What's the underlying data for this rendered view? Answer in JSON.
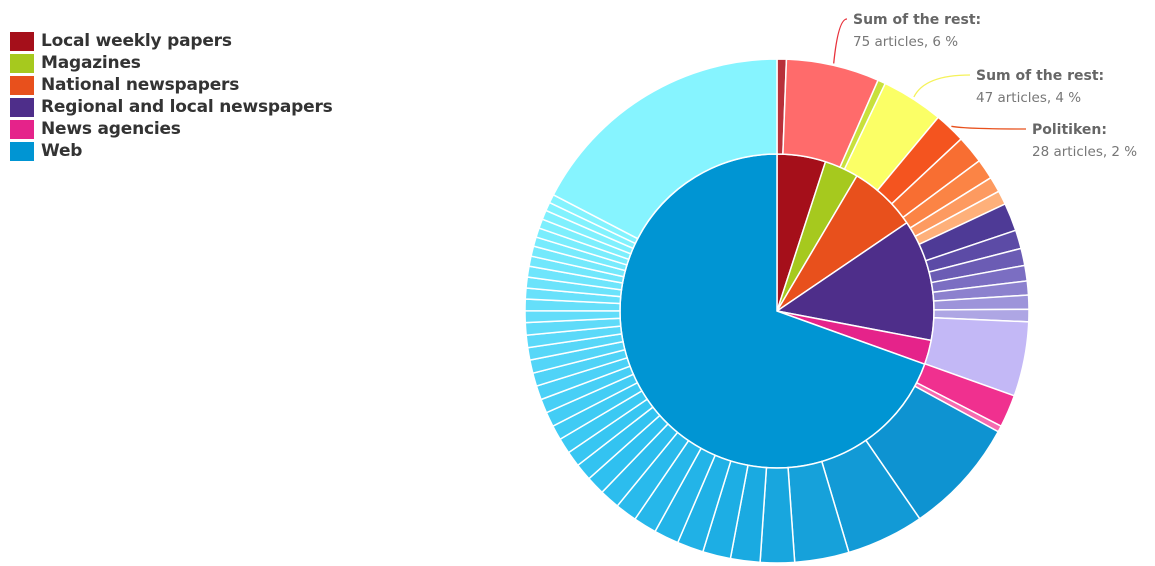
{
  "chart_data": {
    "type": "pie",
    "subtype": "sunburst",
    "legend": {
      "placement": "top-left"
    },
    "inner": [
      {
        "name": "Local weekly papers",
        "value": 5,
        "color": "#A50F1A"
      },
      {
        "name": "Magazines",
        "value": 3.5,
        "color": "#A6C91E"
      },
      {
        "name": "National newspapers",
        "value": 7,
        "color": "#E8501C"
      },
      {
        "name": "Regional and local newspapers",
        "value": 12.5,
        "color": "#4E2E8A"
      },
      {
        "name": "News agencies",
        "value": 2.5,
        "color": "#E5238A"
      },
      {
        "name": "Web",
        "value": 69.5,
        "color": "#0095D3"
      }
    ],
    "outer": [
      {
        "parent": "Local weekly papers",
        "value": 0.6,
        "color": "#B8303A"
      },
      {
        "parent": "Local weekly papers",
        "value": 6,
        "color": "#FF6B6B",
        "label": "Sum of the rest:",
        "detail": "75 articles, 6 %"
      },
      {
        "parent": "Magazines",
        "value": 0.5,
        "color": "#C8E03C"
      },
      {
        "parent": "Magazines",
        "value": 4,
        "color": "#FBFF66",
        "label": "Sum of the rest:",
        "detail": "47 articles, 4 %"
      },
      {
        "parent": "National newspapers",
        "value": 2,
        "color": "#F4541F",
        "label": "Politiken:",
        "detail": "28 articles, 2 %"
      },
      {
        "parent": "National newspapers",
        "value": 1.8,
        "color": "#F86E32"
      },
      {
        "parent": "National newspapers",
        "value": 1.3,
        "color": "#FB8445"
      },
      {
        "parent": "National newspapers",
        "value": 1.0,
        "color": "#FD9A60"
      },
      {
        "parent": "National newspapers",
        "value": 0.9,
        "color": "#FEB07A"
      },
      {
        "parent": "Regional and local newspapers",
        "value": 1.8,
        "color": "#4E3A96"
      },
      {
        "parent": "Regional and local newspapers",
        "value": 1.2,
        "color": "#5C4BA6"
      },
      {
        "parent": "Regional and local newspapers",
        "value": 1.1,
        "color": "#6B5CB4"
      },
      {
        "parent": "Regional and local newspapers",
        "value": 1.0,
        "color": "#7B6EC2"
      },
      {
        "parent": "Regional and local newspapers",
        "value": 0.9,
        "color": "#8C81CE"
      },
      {
        "parent": "Regional and local newspapers",
        "value": 0.9,
        "color": "#9D94DA"
      },
      {
        "parent": "Regional and local newspapers",
        "value": 0.8,
        "color": "#AEA6E4"
      },
      {
        "parent": "Regional and local newspapers",
        "value": 4.8,
        "color": "#C3B8F6"
      },
      {
        "parent": "News agencies",
        "value": 2.1,
        "color": "#F0308F"
      },
      {
        "parent": "News agencies",
        "value": 0.4,
        "color": "#F56BB0"
      },
      {
        "parent": "Web",
        "value": 7.5,
        "color": "#0E93D1"
      },
      {
        "parent": "Web",
        "value": 5.0,
        "color": "#129AD6"
      },
      {
        "parent": "Web",
        "value": 3.5,
        "color": "#16A1DA"
      },
      {
        "parent": "Web",
        "value": 2.2,
        "color": "#18A6DE"
      },
      {
        "parent": "Web",
        "value": 1.9,
        "color": "#1AAAE1"
      },
      {
        "parent": "Web",
        "value": 1.8,
        "color": "#1DAEE4"
      },
      {
        "parent": "Web",
        "value": 1.7,
        "color": "#20B1E6"
      },
      {
        "parent": "Web",
        "value": 1.6,
        "color": "#23B4E8"
      },
      {
        "parent": "Web",
        "value": 1.5,
        "color": "#26B7EA"
      },
      {
        "parent": "Web",
        "value": 1.4,
        "color": "#29BAEC"
      },
      {
        "parent": "Web",
        "value": 1.3,
        "color": "#2CBDEE"
      },
      {
        "parent": "Web",
        "value": 1.2,
        "color": "#2FC0F0"
      },
      {
        "parent": "Web",
        "value": 1.1,
        "color": "#33C3F1"
      },
      {
        "parent": "Web",
        "value": 1.0,
        "color": "#37C6F2"
      },
      {
        "parent": "Web",
        "value": 1.0,
        "color": "#3BC9F3"
      },
      {
        "parent": "Web",
        "value": 0.95,
        "color": "#3FCBF4"
      },
      {
        "parent": "Web",
        "value": 0.95,
        "color": "#43CDF5"
      },
      {
        "parent": "Web",
        "value": 0.9,
        "color": "#47CFF6"
      },
      {
        "parent": "Web",
        "value": 0.9,
        "color": "#4BD1F7"
      },
      {
        "parent": "Web",
        "value": 0.85,
        "color": "#4FD3F7"
      },
      {
        "parent": "Web",
        "value": 0.85,
        "color": "#53D5F8"
      },
      {
        "parent": "Web",
        "value": 0.8,
        "color": "#57D7F8"
      },
      {
        "parent": "Web",
        "value": 0.8,
        "color": "#5BD9F9"
      },
      {
        "parent": "Web",
        "value": 0.8,
        "color": "#5FDBF9"
      },
      {
        "parent": "Web",
        "value": 0.75,
        "color": "#62DDFA"
      },
      {
        "parent": "Web",
        "value": 0.75,
        "color": "#65DFFA"
      },
      {
        "parent": "Web",
        "value": 0.7,
        "color": "#68E1FB"
      },
      {
        "parent": "Web",
        "value": 0.7,
        "color": "#6BE3FB"
      },
      {
        "parent": "Web",
        "value": 0.7,
        "color": "#6EE5FC"
      },
      {
        "parent": "Web",
        "value": 0.65,
        "color": "#71E7FC"
      },
      {
        "parent": "Web",
        "value": 0.65,
        "color": "#74E9FC"
      },
      {
        "parent": "Web",
        "value": 0.6,
        "color": "#77EBFD"
      },
      {
        "parent": "Web",
        "value": 0.6,
        "color": "#7AEDFD"
      },
      {
        "parent": "Web",
        "value": 0.6,
        "color": "#7DEFFD"
      },
      {
        "parent": "Web",
        "value": 0.6,
        "color": "#80F0FE"
      },
      {
        "parent": "Web",
        "value": 0.55,
        "color": "#82F2FE"
      },
      {
        "parent": "Web",
        "value": 0.55,
        "color": "#84F3FE"
      },
      {
        "parent": "Web",
        "value": 17.45,
        "color": "#86F4FF"
      }
    ]
  }
}
